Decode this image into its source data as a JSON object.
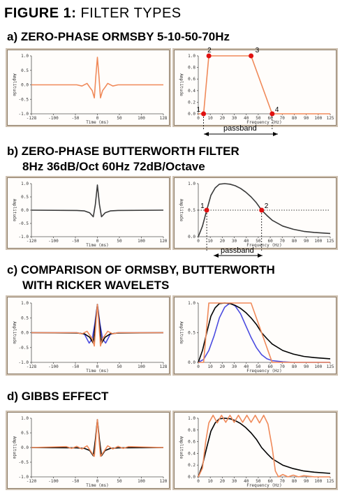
{
  "figure": {
    "title_bold": "FIGURE 1:",
    "title_rest": " FILTER TYPES"
  },
  "sections": [
    {
      "heading": "a) ZERO-PHASE ORMSBY 5-10-50-70Hz"
    },
    {
      "heading": "b) ZERO-PHASE BUTTERWORTH FILTER",
      "subheading": "8Hz 36dB/Oct 60Hz 72dB/Octave"
    },
    {
      "heading": "c) COMPARISON OF ORMSBY, BUTTERWORTH",
      "subheading": "WITH RICKER WAVELETS"
    },
    {
      "heading": "d) GIBBS EFFECT"
    }
  ],
  "labels": {
    "ylabel": "Amplitude",
    "xlabel_time": "Time (ms)",
    "xlabel_freq": "Frequency (Hz)",
    "passband": "passband"
  },
  "colors": {
    "orange": "#f08a5a",
    "dark": "#3a3a3a",
    "black": "#000000",
    "blue": "#4b4be0",
    "red": "#e01010"
  },
  "chart_data": [
    {
      "id": "a-time",
      "type": "line",
      "xlim": [
        -128,
        128
      ],
      "ylim": [
        -1,
        1
      ],
      "xticks": [
        "-128",
        "-100",
        "-50",
        "0",
        "50",
        "100",
        "128"
      ],
      "yticks": [
        "1.0",
        "0.5",
        "0.0",
        "-0.5",
        "-1.0"
      ],
      "xlabel": "Time (ms)",
      "ylabel": "Amplitude",
      "series": [
        {
          "color": "orange",
          "x": [
            -128,
            -40,
            -30,
            -20,
            -15,
            -10,
            -6,
            -3,
            0,
            3,
            6,
            10,
            15,
            20,
            30,
            40,
            128
          ],
          "y": [
            0,
            0,
            -0.04,
            0.05,
            -0.08,
            -0.2,
            -0.45,
            0.3,
            0.95,
            0.3,
            -0.45,
            -0.2,
            -0.08,
            0.05,
            -0.04,
            0,
            0
          ]
        }
      ]
    },
    {
      "id": "a-freq",
      "type": "line",
      "xlim": [
        0,
        125
      ],
      "ylim": [
        0,
        1
      ],
      "xticks": [
        "0",
        "10",
        "20",
        "30",
        "40",
        "50",
        "60",
        "70",
        "80",
        "90",
        "100",
        "125"
      ],
      "yticks": [
        "1.0",
        "0.8",
        "0.6",
        "0.4",
        "0.2",
        "0.0"
      ],
      "xlabel": "Frequency (Hz)",
      "ylabel": "Amplitude",
      "series": [
        {
          "color": "orange",
          "x": [
            0,
            5,
            10,
            50,
            70,
            125
          ],
          "y": [
            0,
            0,
            1,
            1,
            0,
            0
          ]
        }
      ],
      "points": [
        {
          "label": "1",
          "x": 5,
          "y": 0
        },
        {
          "label": "2",
          "x": 10,
          "y": 1
        },
        {
          "label": "3",
          "x": 50,
          "y": 1
        },
        {
          "label": "4",
          "x": 70,
          "y": 0
        }
      ],
      "annotation": "passband"
    },
    {
      "id": "b-time",
      "type": "line",
      "xlim": [
        -128,
        128
      ],
      "ylim": [
        -1,
        1
      ],
      "xticks": [
        "-120",
        "-100",
        "-50",
        "0",
        "50",
        "100",
        "120"
      ],
      "yticks": [
        "1.0",
        "0.5",
        "0.0",
        "-0.5",
        "-1.0"
      ],
      "xlabel": "Time (ms)",
      "ylabel": "Amplitude",
      "series": [
        {
          "color": "dark",
          "x": [
            -128,
            -40,
            -25,
            -15,
            -8,
            -4,
            0,
            4,
            8,
            15,
            25,
            40,
            128
          ],
          "y": [
            0,
            -0.01,
            -0.03,
            -0.1,
            -0.25,
            0.2,
            0.95,
            0.2,
            -0.25,
            -0.1,
            -0.03,
            -0.01,
            0
          ]
        }
      ]
    },
    {
      "id": "b-freq",
      "type": "line",
      "xlim": [
        0,
        125
      ],
      "ylim": [
        0,
        1
      ],
      "xticks": [
        "0",
        "10",
        "20",
        "30",
        "40",
        "50",
        "60",
        "70",
        "80",
        "90",
        "100",
        "125"
      ],
      "yticks": [
        "1.0",
        "0.5",
        "0.0"
      ],
      "xlabel": "Frequency (Hz)",
      "ylabel": "Amplitude",
      "series": [
        {
          "color": "dark",
          "x": [
            0,
            4,
            8,
            12,
            16,
            20,
            25,
            30,
            35,
            40,
            45,
            50,
            55,
            60,
            65,
            70,
            80,
            90,
            100,
            110,
            125
          ],
          "y": [
            0,
            0.2,
            0.5,
            0.78,
            0.92,
            0.99,
            1.0,
            0.99,
            0.96,
            0.91,
            0.84,
            0.75,
            0.64,
            0.5,
            0.4,
            0.31,
            0.2,
            0.14,
            0.1,
            0.08,
            0.06
          ]
        }
      ],
      "points": [
        {
          "label": "1",
          "x": 8,
          "y": 0.5
        },
        {
          "label": "2",
          "x": 60,
          "y": 0.5
        }
      ],
      "annotation": "passband"
    },
    {
      "id": "c-time",
      "type": "line",
      "xlim": [
        -128,
        128
      ],
      "ylim": [
        -1,
        1
      ],
      "xticks": [
        "-128",
        "-100",
        "-50",
        "0",
        "50",
        "100",
        "128"
      ],
      "yticks": [
        "1.0",
        "0.5",
        "0.0",
        "-0.5",
        "-1.0"
      ],
      "xlabel": "Time (ms)",
      "ylabel": "Amplitude",
      "series": [
        {
          "color": "blue",
          "x": [
            -128,
            -40,
            -25,
            -16,
            -10,
            -5,
            0,
            5,
            10,
            16,
            25,
            40,
            128
          ],
          "y": [
            0,
            0,
            -0.05,
            -0.35,
            -0.2,
            0.3,
            0.95,
            0.3,
            -0.2,
            -0.35,
            -0.05,
            0,
            0
          ]
        },
        {
          "color": "black",
          "x": [
            -128,
            -40,
            -25,
            -15,
            -8,
            -4,
            0,
            4,
            8,
            15,
            25,
            40,
            128
          ],
          "y": [
            0,
            -0.01,
            -0.04,
            -0.15,
            -0.35,
            0.3,
            0.95,
            0.3,
            -0.35,
            -0.15,
            -0.04,
            -0.01,
            0
          ]
        },
        {
          "color": "orange",
          "x": [
            -128,
            -40,
            -30,
            -20,
            -15,
            -10,
            -6,
            -3,
            0,
            3,
            6,
            10,
            15,
            20,
            30,
            40,
            128
          ],
          "y": [
            0,
            0,
            -0.04,
            0.05,
            -0.08,
            -0.2,
            -0.45,
            0.3,
            0.95,
            0.3,
            -0.45,
            -0.2,
            -0.08,
            0.05,
            -0.04,
            0,
            0
          ]
        }
      ]
    },
    {
      "id": "c-freq",
      "type": "line",
      "xlim": [
        0,
        125
      ],
      "ylim": [
        0,
        1
      ],
      "xticks": [
        "0",
        "10",
        "20",
        "30",
        "40",
        "50",
        "60",
        "70",
        "80",
        "90",
        "100",
        "125"
      ],
      "yticks": [
        "1.0",
        "0.5",
        "0.0"
      ],
      "xlabel": "Frequency (Hz)",
      "ylabel": "Amplitude",
      "series": [
        {
          "color": "blue",
          "x": [
            0,
            5,
            10,
            15,
            20,
            25,
            30,
            35,
            40,
            45,
            50,
            55,
            60,
            65,
            70,
            80,
            90,
            125
          ],
          "y": [
            0,
            0.05,
            0.2,
            0.45,
            0.75,
            0.93,
            1.0,
            0.95,
            0.82,
            0.62,
            0.42,
            0.25,
            0.13,
            0.06,
            0.03,
            0.01,
            0,
            0
          ]
        },
        {
          "color": "black",
          "x": [
            0,
            4,
            8,
            12,
            16,
            20,
            25,
            30,
            35,
            40,
            45,
            50,
            55,
            60,
            65,
            70,
            80,
            90,
            100,
            110,
            125
          ],
          "y": [
            0,
            0.2,
            0.5,
            0.78,
            0.92,
            0.99,
            1.0,
            0.99,
            0.96,
            0.91,
            0.84,
            0.75,
            0.64,
            0.5,
            0.4,
            0.31,
            0.2,
            0.14,
            0.1,
            0.08,
            0.06
          ]
        },
        {
          "color": "orange",
          "x": [
            0,
            5,
            10,
            50,
            70,
            125
          ],
          "y": [
            0,
            0,
            1,
            1,
            0,
            0
          ]
        }
      ]
    },
    {
      "id": "d-time",
      "type": "line",
      "xlim": [
        -128,
        128
      ],
      "ylim": [
        -1,
        1
      ],
      "xticks": [
        "-120",
        "-100",
        "-50",
        "0",
        "50",
        "100",
        "120"
      ],
      "yticks": [
        "1.0",
        "0.5",
        "0.0",
        "-0.5",
        "-1.0"
      ],
      "xlabel": "Time (ms)",
      "ylabel": "Amplitude",
      "series": [
        {
          "color": "black",
          "x": [
            -128,
            -40,
            -25,
            -15,
            -8,
            -4,
            0,
            4,
            8,
            15,
            25,
            40,
            128
          ],
          "y": [
            0,
            -0.01,
            -0.03,
            -0.1,
            -0.28,
            0.25,
            0.95,
            0.25,
            -0.28,
            -0.1,
            -0.03,
            -0.01,
            0
          ]
        },
        {
          "color": "orange",
          "x": [
            -128,
            -60,
            -50,
            -40,
            -30,
            -20,
            -12,
            -6,
            -3,
            0,
            3,
            6,
            12,
            20,
            30,
            40,
            50,
            60,
            128
          ],
          "y": [
            0,
            0.03,
            -0.03,
            0.04,
            -0.05,
            0.06,
            -0.15,
            -0.3,
            0.3,
            0.95,
            0.3,
            -0.3,
            -0.15,
            0.06,
            -0.05,
            0.04,
            -0.03,
            0.03,
            0
          ]
        }
      ]
    },
    {
      "id": "d-freq",
      "type": "line",
      "xlim": [
        0,
        125
      ],
      "ylim": [
        0,
        1
      ],
      "xticks": [
        "0",
        "10",
        "20",
        "30",
        "40",
        "50",
        "60",
        "70",
        "80",
        "90",
        "100",
        "125"
      ],
      "yticks": [
        "1.0",
        "0.8",
        "0.6",
        "0.4",
        "0.2",
        "0.0"
      ],
      "xlabel": "Frequency (Hz)",
      "ylabel": "Amplitude",
      "series": [
        {
          "color": "black",
          "x": [
            0,
            4,
            8,
            12,
            16,
            20,
            25,
            30,
            35,
            40,
            45,
            50,
            55,
            60,
            65,
            70,
            80,
            90,
            100,
            110,
            125
          ],
          "y": [
            0,
            0.2,
            0.5,
            0.78,
            0.92,
            0.99,
            1.0,
            0.99,
            0.96,
            0.91,
            0.84,
            0.75,
            0.64,
            0.5,
            0.4,
            0.31,
            0.2,
            0.14,
            0.1,
            0.08,
            0.06
          ]
        },
        {
          "color": "orange",
          "x": [
            0,
            4,
            7,
            10,
            14,
            18,
            22,
            26,
            30,
            34,
            38,
            42,
            46,
            50,
            54,
            58,
            62,
            66,
            70,
            73,
            76,
            80,
            85,
            90,
            95,
            100,
            110,
            125
          ],
          "y": [
            0,
            0.15,
            0.6,
            0.92,
            1.05,
            0.92,
            1.05,
            0.93,
            1.05,
            0.93,
            1.05,
            0.93,
            1.05,
            0.93,
            1.05,
            0.92,
            1.05,
            0.9,
            0.5,
            0.1,
            -0.03,
            0.04,
            -0.03,
            0.03,
            -0.02,
            0.02,
            0,
            0
          ]
        }
      ]
    }
  ]
}
